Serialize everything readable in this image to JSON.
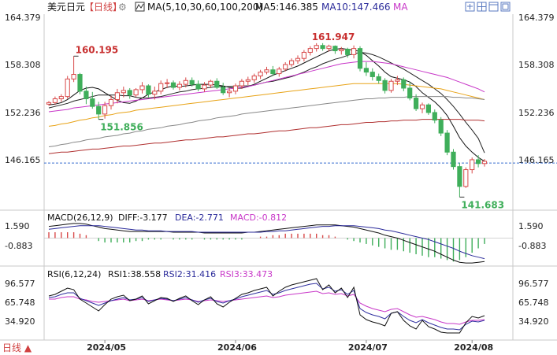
{
  "header": {
    "symbol": "美元日元",
    "period_label": "【日线】",
    "indicator_label": "MA(5,10,30,60,100,200)",
    "ma5_label": "MA5:146.385",
    "ma10_label": "MA10:147.466",
    "ma_label": "MA"
  },
  "toolbar": {
    "icons": [
      "expand-icon",
      "settings-grid-icon",
      "layout-icon",
      "window-icon"
    ]
  },
  "price_axis": {
    "ticks": [
      "164.379",
      "158.308",
      "152.236",
      "146.165"
    ]
  },
  "annotations": {
    "high1": "160.195",
    "low1": "151.856",
    "high2": "161.947",
    "low2": "141.683"
  },
  "macd": {
    "title": "MACD(26,12,9)",
    "diff_label": "DIFF:-3.177",
    "dea_label": "DEA:-2.771",
    "macd_label": "MACD:-0.812",
    "ticks": [
      "1.590",
      "-0.883"
    ]
  },
  "rsi": {
    "title": "RSI(6,12,24)",
    "rsi1_label": "RSI1:38.558",
    "rsi2_label": "RSI2:31.416",
    "rsi3_label": "RSI3:33.473",
    "ticks": [
      "96.577",
      "65.748",
      "34.920"
    ]
  },
  "date_axis": {
    "labels": [
      "2024/05",
      "2024/06",
      "2024/07",
      "2024/08"
    ]
  },
  "footer": {
    "period_button": "日线 ▲"
  },
  "colors": {
    "up": "#d84a4a",
    "down": "#3fae5a",
    "ma5": "#111111",
    "ma10": "#222222",
    "ma30": "#c837c8",
    "ma60": "#e8a317",
    "ma100": "#888888",
    "ma200": "#b03030",
    "rsi1": "#111111",
    "rsi2": "#3030a0",
    "rsi3": "#c837c8",
    "macd_hist": "#3fae5a"
  },
  "chart_data": {
    "type": "candlestick",
    "price_range": [
      140.5,
      165.5
    ],
    "last_price": 146.165,
    "candles": [
      [
        153.9,
        154.3,
        153.7,
        154.1
      ],
      [
        154.1,
        154.9,
        153.8,
        154.6
      ],
      [
        154.6,
        155.2,
        154.2,
        154.9
      ],
      [
        154.9,
        157.6,
        154.6,
        157.2
      ],
      [
        157.2,
        160.2,
        156.8,
        157.8
      ],
      [
        157.8,
        158.0,
        155.2,
        155.6
      ],
      [
        155.6,
        156.2,
        153.9,
        154.6
      ],
      [
        154.6,
        155.5,
        153.3,
        153.6
      ],
      [
        153.6,
        154.2,
        151.9,
        152.6
      ],
      [
        152.6,
        154.2,
        152.0,
        153.7
      ],
      [
        153.7,
        155.0,
        153.2,
        154.5
      ],
      [
        154.5,
        155.9,
        154.0,
        155.4
      ],
      [
        155.4,
        156.2,
        154.8,
        155.7
      ],
      [
        155.7,
        156.0,
        154.6,
        155.1
      ],
      [
        155.1,
        156.0,
        154.8,
        155.8
      ],
      [
        155.8,
        156.8,
        155.3,
        156.3
      ],
      [
        156.3,
        156.5,
        154.8,
        155.2
      ],
      [
        155.2,
        156.2,
        154.5,
        155.6
      ],
      [
        155.6,
        157.0,
        155.2,
        156.6
      ],
      [
        156.6,
        157.2,
        156.0,
        156.7
      ],
      [
        156.7,
        157.0,
        155.8,
        156.1
      ],
      [
        156.1,
        156.9,
        155.7,
        156.5
      ],
      [
        156.5,
        157.4,
        156.1,
        157.0
      ],
      [
        157.0,
        157.4,
        156.2,
        156.5
      ],
      [
        156.5,
        157.0,
        155.6,
        155.9
      ],
      [
        155.9,
        156.8,
        155.5,
        156.4
      ],
      [
        156.4,
        157.1,
        156.0,
        156.9
      ],
      [
        156.9,
        157.3,
        155.9,
        156.1
      ],
      [
        156.1,
        156.7,
        155.1,
        155.4
      ],
      [
        155.4,
        156.0,
        154.8,
        155.6
      ],
      [
        155.6,
        156.6,
        155.2,
        156.3
      ],
      [
        156.3,
        157.2,
        155.9,
        156.9
      ],
      [
        156.9,
        157.5,
        156.4,
        157.1
      ],
      [
        157.1,
        157.9,
        156.7,
        157.6
      ],
      [
        157.6,
        158.4,
        157.2,
        158.1
      ],
      [
        158.1,
        158.8,
        157.8,
        158.4
      ],
      [
        158.4,
        158.9,
        157.6,
        157.9
      ],
      [
        157.9,
        158.8,
        157.5,
        158.5
      ],
      [
        158.5,
        159.4,
        158.2,
        159.1
      ],
      [
        159.1,
        159.9,
        158.8,
        159.6
      ],
      [
        159.6,
        160.3,
        159.2,
        159.9
      ],
      [
        159.9,
        161.0,
        159.5,
        160.7
      ],
      [
        160.7,
        161.5,
        160.3,
        161.2
      ],
      [
        161.2,
        161.9,
        160.8,
        161.6
      ],
      [
        161.6,
        161.9,
        160.9,
        161.2
      ],
      [
        161.2,
        161.7,
        160.8,
        161.5
      ],
      [
        161.5,
        161.6,
        160.5,
        160.9
      ],
      [
        160.9,
        161.4,
        160.4,
        161.1
      ],
      [
        161.1,
        161.3,
        160.0,
        160.4
      ],
      [
        160.4,
        161.6,
        159.9,
        161.2
      ],
      [
        161.2,
        161.5,
        158.2,
        158.6
      ],
      [
        158.6,
        159.4,
        157.6,
        158.1
      ],
      [
        158.1,
        158.6,
        157.0,
        157.5
      ],
      [
        157.5,
        157.9,
        156.6,
        157.0
      ],
      [
        157.0,
        157.3,
        155.3,
        155.7
      ],
      [
        155.7,
        157.2,
        155.4,
        156.9
      ],
      [
        156.9,
        157.6,
        156.4,
        157.1
      ],
      [
        157.1,
        157.4,
        155.6,
        156.0
      ],
      [
        156.0,
        156.8,
        154.4,
        154.7
      ],
      [
        154.7,
        155.2,
        153.0,
        153.3
      ],
      [
        153.3,
        154.1,
        152.7,
        153.8
      ],
      [
        153.8,
        154.0,
        152.5,
        152.8
      ],
      [
        152.8,
        153.2,
        151.4,
        151.8
      ],
      [
        151.8,
        152.2,
        149.7,
        150.1
      ],
      [
        150.1,
        150.5,
        147.2,
        147.6
      ],
      [
        147.6,
        148.0,
        145.3,
        145.7
      ],
      [
        145.7,
        146.2,
        141.7,
        143.1
      ],
      [
        143.1,
        145.6,
        142.9,
        145.3
      ],
      [
        145.3,
        146.9,
        144.8,
        146.6
      ],
      [
        146.6,
        147.2,
        145.6,
        146.1
      ],
      [
        146.1,
        146.7,
        145.7,
        146.4
      ]
    ],
    "ma": [
      {
        "name": "MA5",
        "values": [
          153.8,
          153.9,
          154.1,
          154.5,
          155.1,
          155.7,
          156.0,
          156.1,
          155.9,
          155.4,
          154.9,
          154.4,
          154.1,
          154.0,
          154.3,
          154.7,
          155.2,
          155.5,
          155.8,
          156.1,
          156.3,
          156.2,
          156.3,
          156.4,
          156.5,
          156.5,
          156.5,
          156.4,
          156.3,
          156.1,
          156.0,
          156.0,
          156.2,
          156.5,
          156.9,
          157.3,
          157.7,
          158.0,
          158.3,
          158.6,
          158.9,
          159.3,
          159.7,
          160.1,
          160.5,
          160.9,
          161.1,
          161.2,
          161.1,
          161.0,
          160.8,
          160.3,
          159.6,
          158.9,
          158.1,
          157.5,
          157.3,
          157.1,
          156.8,
          156.2,
          155.4,
          154.8,
          154.2,
          153.4,
          152.4,
          151.0,
          149.5,
          148.4,
          147.6,
          146.9,
          146.4
        ]
      },
      {
        "name": "MA10",
        "values": [
          153.4,
          153.6,
          153.8,
          154.0,
          154.3,
          154.5,
          154.7,
          154.9,
          155.1,
          155.1,
          155.1,
          155.1,
          155.0,
          155.0,
          154.8,
          154.7,
          154.7,
          154.8,
          154.9,
          155.1,
          155.3,
          155.5,
          155.6,
          155.8,
          155.9,
          156.0,
          156.1,
          156.2,
          156.2,
          156.2,
          156.3,
          156.3,
          156.3,
          156.4,
          156.6,
          156.8,
          156.9,
          157.1,
          157.3,
          157.5,
          157.8,
          158.1,
          158.5,
          158.8,
          159.2,
          159.5,
          159.8,
          160.0,
          160.3,
          160.5,
          160.7,
          160.6,
          160.4,
          160.1,
          159.7,
          159.3,
          158.9,
          158.5,
          158.0,
          157.5,
          157.0,
          156.5,
          155.9,
          155.3,
          154.5,
          153.6,
          152.6,
          151.5,
          150.5,
          149.4,
          147.5
        ]
      },
      {
        "name": "MA30",
        "values": [
          152.9,
          153.0,
          153.1,
          153.2,
          153.4,
          153.5,
          153.6,
          153.7,
          153.8,
          153.9,
          154.0,
          154.1,
          154.2,
          154.3,
          154.4,
          154.5,
          154.6,
          154.7,
          154.8,
          154.9,
          155.0,
          155.1,
          155.2,
          155.3,
          155.4,
          155.5,
          155.6,
          155.7,
          155.8,
          155.9,
          156.0,
          156.1,
          156.2,
          156.4,
          156.6,
          156.8,
          157.0,
          157.2,
          157.4,
          157.6,
          157.8,
          158.0,
          158.2,
          158.4,
          158.6,
          158.8,
          159.0,
          159.2,
          159.3,
          159.4,
          159.5,
          159.5,
          159.5,
          159.4,
          159.3,
          159.2,
          159.0,
          158.8,
          158.6,
          158.4,
          158.2,
          158.0,
          157.8,
          157.6,
          157.4,
          157.1,
          156.8,
          156.5,
          156.2,
          155.9,
          155.5
        ]
      },
      {
        "name": "MA60",
        "values": [
          151.0,
          151.1,
          151.3,
          151.4,
          151.6,
          151.8,
          151.9,
          152.1,
          152.2,
          152.4,
          152.5,
          152.7,
          152.8,
          152.9,
          153.1,
          153.2,
          153.3,
          153.4,
          153.5,
          153.6,
          153.7,
          153.8,
          153.9,
          154.0,
          154.1,
          154.2,
          154.3,
          154.4,
          154.5,
          154.6,
          154.7,
          154.8,
          154.9,
          155.0,
          155.1,
          155.2,
          155.3,
          155.4,
          155.5,
          155.6,
          155.7,
          155.8,
          155.9,
          156.0,
          156.1,
          156.2,
          156.3,
          156.4,
          156.5,
          156.6,
          156.6,
          156.6,
          156.6,
          156.6,
          156.6,
          156.6,
          156.6,
          156.5,
          156.4,
          156.3,
          156.2,
          156.1,
          156.0,
          155.9,
          155.7,
          155.5,
          155.3,
          155.1,
          154.9,
          154.7,
          154.5
        ]
      },
      {
        "name": "MA100",
        "values": [
          148.3,
          148.4,
          148.6,
          148.7,
          148.9,
          149.0,
          149.2,
          149.3,
          149.4,
          149.6,
          149.7,
          149.8,
          150.0,
          150.1,
          150.3,
          150.4,
          150.6,
          150.7,
          150.8,
          151.0,
          151.1,
          151.2,
          151.4,
          151.5,
          151.7,
          151.8,
          151.9,
          152.1,
          152.2,
          152.3,
          152.4,
          152.6,
          152.7,
          152.8,
          152.9,
          153.0,
          153.1,
          153.2,
          153.3,
          153.4,
          153.5,
          153.6,
          153.7,
          153.8,
          153.9,
          154.0,
          154.1,
          154.2,
          154.3,
          154.4,
          154.5,
          154.6,
          154.6,
          154.7,
          154.7,
          154.8,
          154.8,
          154.8,
          154.9,
          154.9,
          154.9,
          154.9,
          154.9,
          154.9,
          154.9,
          154.8,
          154.8,
          154.7,
          154.7,
          154.6,
          154.5
        ]
      },
      {
        "name": "MA200",
        "values": [
          147.4,
          147.5,
          147.6,
          147.6,
          147.7,
          147.8,
          147.9,
          148.0,
          148.0,
          148.1,
          148.2,
          148.3,
          148.4,
          148.4,
          148.5,
          148.6,
          148.7,
          148.8,
          148.8,
          148.9,
          149.0,
          149.1,
          149.2,
          149.2,
          149.3,
          149.4,
          149.5,
          149.6,
          149.6,
          149.7,
          149.8,
          149.9,
          150.0,
          150.0,
          150.1,
          150.2,
          150.3,
          150.4,
          150.4,
          150.5,
          150.6,
          150.7,
          150.8,
          150.8,
          150.9,
          151.0,
          151.1,
          151.2,
          151.2,
          151.3,
          151.4,
          151.5,
          151.5,
          151.6,
          151.6,
          151.7,
          151.7,
          151.8,
          151.8,
          151.8,
          151.9,
          151.9,
          151.9,
          151.9,
          151.9,
          151.9,
          151.9,
          151.8,
          151.8,
          151.8,
          151.7
        ]
      }
    ],
    "macd_range": [
      -3.6,
      2.2
    ],
    "macd_diff": [
      1.6,
      1.7,
      1.8,
      1.9,
      2.0,
      2.0,
      1.9,
      1.7,
      1.5,
      1.3,
      1.2,
      1.1,
      1.0,
      0.9,
      0.9,
      0.9,
      0.9,
      0.9,
      0.9,
      0.9,
      0.8,
      0.8,
      0.8,
      0.8,
      0.8,
      0.7,
      0.7,
      0.7,
      0.7,
      0.7,
      0.7,
      0.7,
      0.8,
      0.8,
      0.9,
      1.0,
      1.1,
      1.2,
      1.3,
      1.4,
      1.5,
      1.6,
      1.7,
      1.8,
      1.8,
      1.8,
      1.8,
      1.7,
      1.6,
      1.5,
      1.3,
      1.1,
      0.9,
      0.7,
      0.4,
      0.2,
      0.0,
      -0.3,
      -0.6,
      -0.9,
      -1.2,
      -1.5,
      -1.8,
      -2.2,
      -2.6,
      -3.0,
      -3.3,
      -3.4,
      -3.4,
      -3.3,
      -3.2
    ],
    "macd_dea": [
      1.2,
      1.3,
      1.4,
      1.5,
      1.6,
      1.7,
      1.7,
      1.7,
      1.7,
      1.6,
      1.5,
      1.4,
      1.3,
      1.2,
      1.1,
      1.1,
      1.0,
      1.0,
      1.0,
      0.9,
      0.9,
      0.9,
      0.9,
      0.9,
      0.8,
      0.8,
      0.8,
      0.8,
      0.8,
      0.8,
      0.8,
      0.8,
      0.8,
      0.8,
      0.8,
      0.9,
      0.9,
      1.0,
      1.0,
      1.1,
      1.2,
      1.3,
      1.4,
      1.5,
      1.6,
      1.6,
      1.7,
      1.7,
      1.7,
      1.7,
      1.6,
      1.5,
      1.4,
      1.3,
      1.1,
      1.0,
      0.8,
      0.6,
      0.4,
      0.2,
      0.0,
      -0.2,
      -0.5,
      -0.8,
      -1.1,
      -1.4,
      -1.8,
      -2.1,
      -2.4,
      -2.6,
      -2.8
    ],
    "rsi_range": [
      10,
      100
    ],
    "rsi1": [
      64,
      66,
      70,
      74,
      72,
      60,
      55,
      50,
      45,
      53,
      60,
      63,
      65,
      58,
      60,
      64,
      54,
      58,
      62,
      61,
      57,
      61,
      64,
      58,
      53,
      59,
      63,
      54,
      50,
      56,
      61,
      66,
      68,
      71,
      73,
      75,
      64,
      70,
      75,
      78,
      80,
      82,
      84,
      86,
      72,
      78,
      68,
      74,
      62,
      75,
      40,
      34,
      31,
      29,
      26,
      42,
      44,
      33,
      26,
      22,
      33,
      25,
      22,
      18,
      17,
      17,
      17,
      30,
      38,
      36,
      39
    ],
    "rsi2": [
      62,
      63,
      66,
      68,
      68,
      61,
      58,
      55,
      52,
      55,
      58,
      60,
      62,
      59,
      60,
      62,
      57,
      59,
      61,
      60,
      58,
      60,
      62,
      59,
      56,
      59,
      61,
      57,
      55,
      58,
      60,
      63,
      65,
      67,
      69,
      71,
      66,
      68,
      71,
      73,
      75,
      77,
      79,
      80,
      73,
      75,
      70,
      72,
      66,
      71,
      48,
      43,
      40,
      38,
      35,
      42,
      44,
      38,
      33,
      30,
      34,
      30,
      27,
      24,
      22,
      22,
      21,
      28,
      32,
      31,
      33
    ],
    "rsi3": [
      60,
      60,
      62,
      63,
      63,
      60,
      59,
      57,
      56,
      57,
      58,
      59,
      60,
      58,
      59,
      60,
      58,
      59,
      60,
      59,
      58,
      59,
      60,
      59,
      57,
      58,
      59,
      58,
      57,
      58,
      59,
      60,
      61,
      62,
      63,
      64,
      62,
      63,
      65,
      66,
      67,
      68,
      69,
      70,
      67,
      68,
      66,
      67,
      64,
      66,
      55,
      51,
      48,
      46,
      44,
      47,
      48,
      44,
      40,
      37,
      38,
      36,
      34,
      31,
      29,
      29,
      28,
      31,
      33,
      33,
      34
    ],
    "dates": [
      "2024/05",
      "2024/06",
      "2024/07",
      "2024/08"
    ],
    "date_positions": [
      9,
      30,
      51,
      68
    ]
  }
}
